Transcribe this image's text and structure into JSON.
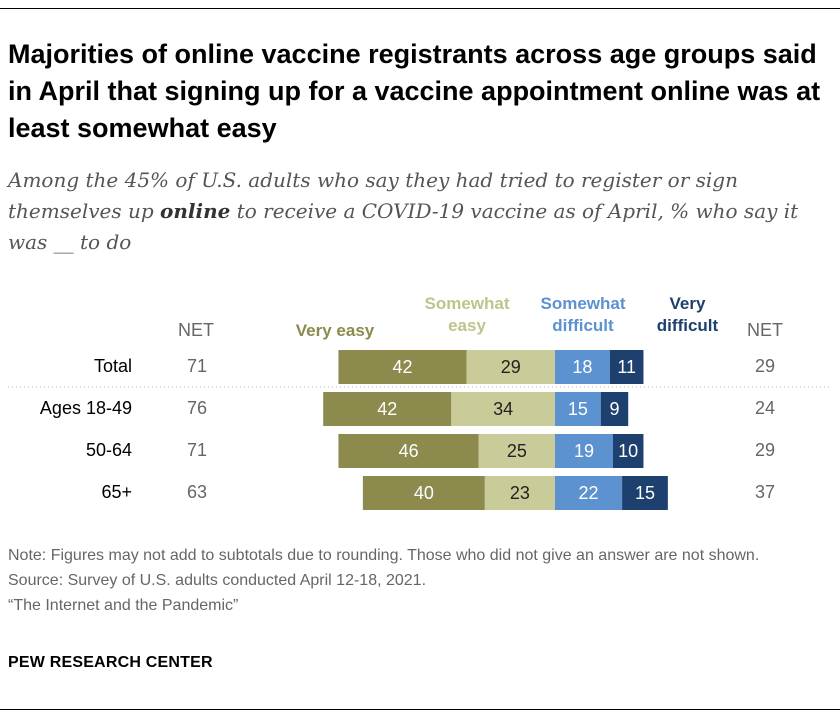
{
  "title": "Majorities of online vaccine registrants across age groups said in April that signing up for a vaccine appointment online was at least somewhat easy",
  "subtitle": {
    "before": "Among the 45% of U.S. adults who say they had tried to register or sign themselves up ",
    "emphasis": "online",
    "after": " to receive a COVID-19 vaccine as of April, % who say it was __ to do"
  },
  "notes": {
    "note": "Note: Figures may not add to subtotals due to rounding. Those who did not give an answer are not shown.",
    "source": "Source: Survey of U.S. adults conducted April 12-18, 2021.",
    "report": "“The Internet and the Pandemic”"
  },
  "brand": "PEW RESEARCH CENTER",
  "headers": {
    "net_left": "NET",
    "net_right": "NET",
    "very_easy": "Very easy",
    "somewhat_easy": "Somewhat easy",
    "somewhat_difficult": "Somewhat difficult",
    "very_difficult": "Very difficult"
  },
  "colors": {
    "very_easy": "#8c8a4c",
    "somewhat_easy": "#c9cc98",
    "somewhat_difficult": "#5c92d0",
    "very_difficult": "#1e406e",
    "very_easy_text": "#8c8a4c",
    "somewhat_easy_text": "#c0c38c",
    "somewhat_difficult_text": "#5c92d0",
    "very_difficult_text": "#1e406e",
    "net_text": "#666666"
  },
  "chart_data": {
    "type": "bar",
    "orientation": "horizontal",
    "stacked": "diverging",
    "title": "Majorities of online vaccine registrants across age groups said in April that signing up for a vaccine appointment online was at least somewhat easy",
    "categories": [
      "Total",
      "Ages 18-49",
      "50-64",
      "65+"
    ],
    "series": [
      {
        "name": "Very easy",
        "side": "easy",
        "values": [
          42,
          42,
          46,
          40
        ]
      },
      {
        "name": "Somewhat easy",
        "side": "easy",
        "values": [
          29,
          34,
          25,
          23
        ]
      },
      {
        "name": "Somewhat difficult",
        "side": "difficult",
        "values": [
          18,
          15,
          19,
          22
        ]
      },
      {
        "name": "Very difficult",
        "side": "difficult",
        "values": [
          11,
          9,
          10,
          15
        ]
      }
    ],
    "net_easy": [
      71,
      76,
      71,
      63
    ],
    "net_difficult": [
      29,
      24,
      29,
      37
    ],
    "xlabel": "",
    "ylabel": ""
  }
}
